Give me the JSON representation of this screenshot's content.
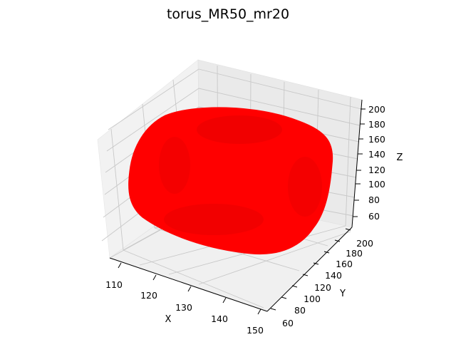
{
  "chart_data": {
    "type": "3d-scatter",
    "title": "torus_MR50_mr20",
    "xlabel": "X",
    "ylabel": "Y",
    "zlabel": "Z",
    "x_ticks": [
      "110",
      "120",
      "130",
      "140",
      "150"
    ],
    "y_ticks": [
      "60",
      "80",
      "100",
      "120",
      "140",
      "160",
      "180",
      "200"
    ],
    "z_ticks": [
      "60",
      "80",
      "100",
      "120",
      "140",
      "160",
      "180",
      "200"
    ],
    "xlim": [
      106,
      151
    ],
    "ylim": [
      52,
      205
    ],
    "zlim": [
      50,
      205
    ],
    "grid": true,
    "surface": {
      "shape": "torus",
      "major_radius": 50,
      "minor_radius": 20,
      "color": "#ff0000"
    }
  }
}
